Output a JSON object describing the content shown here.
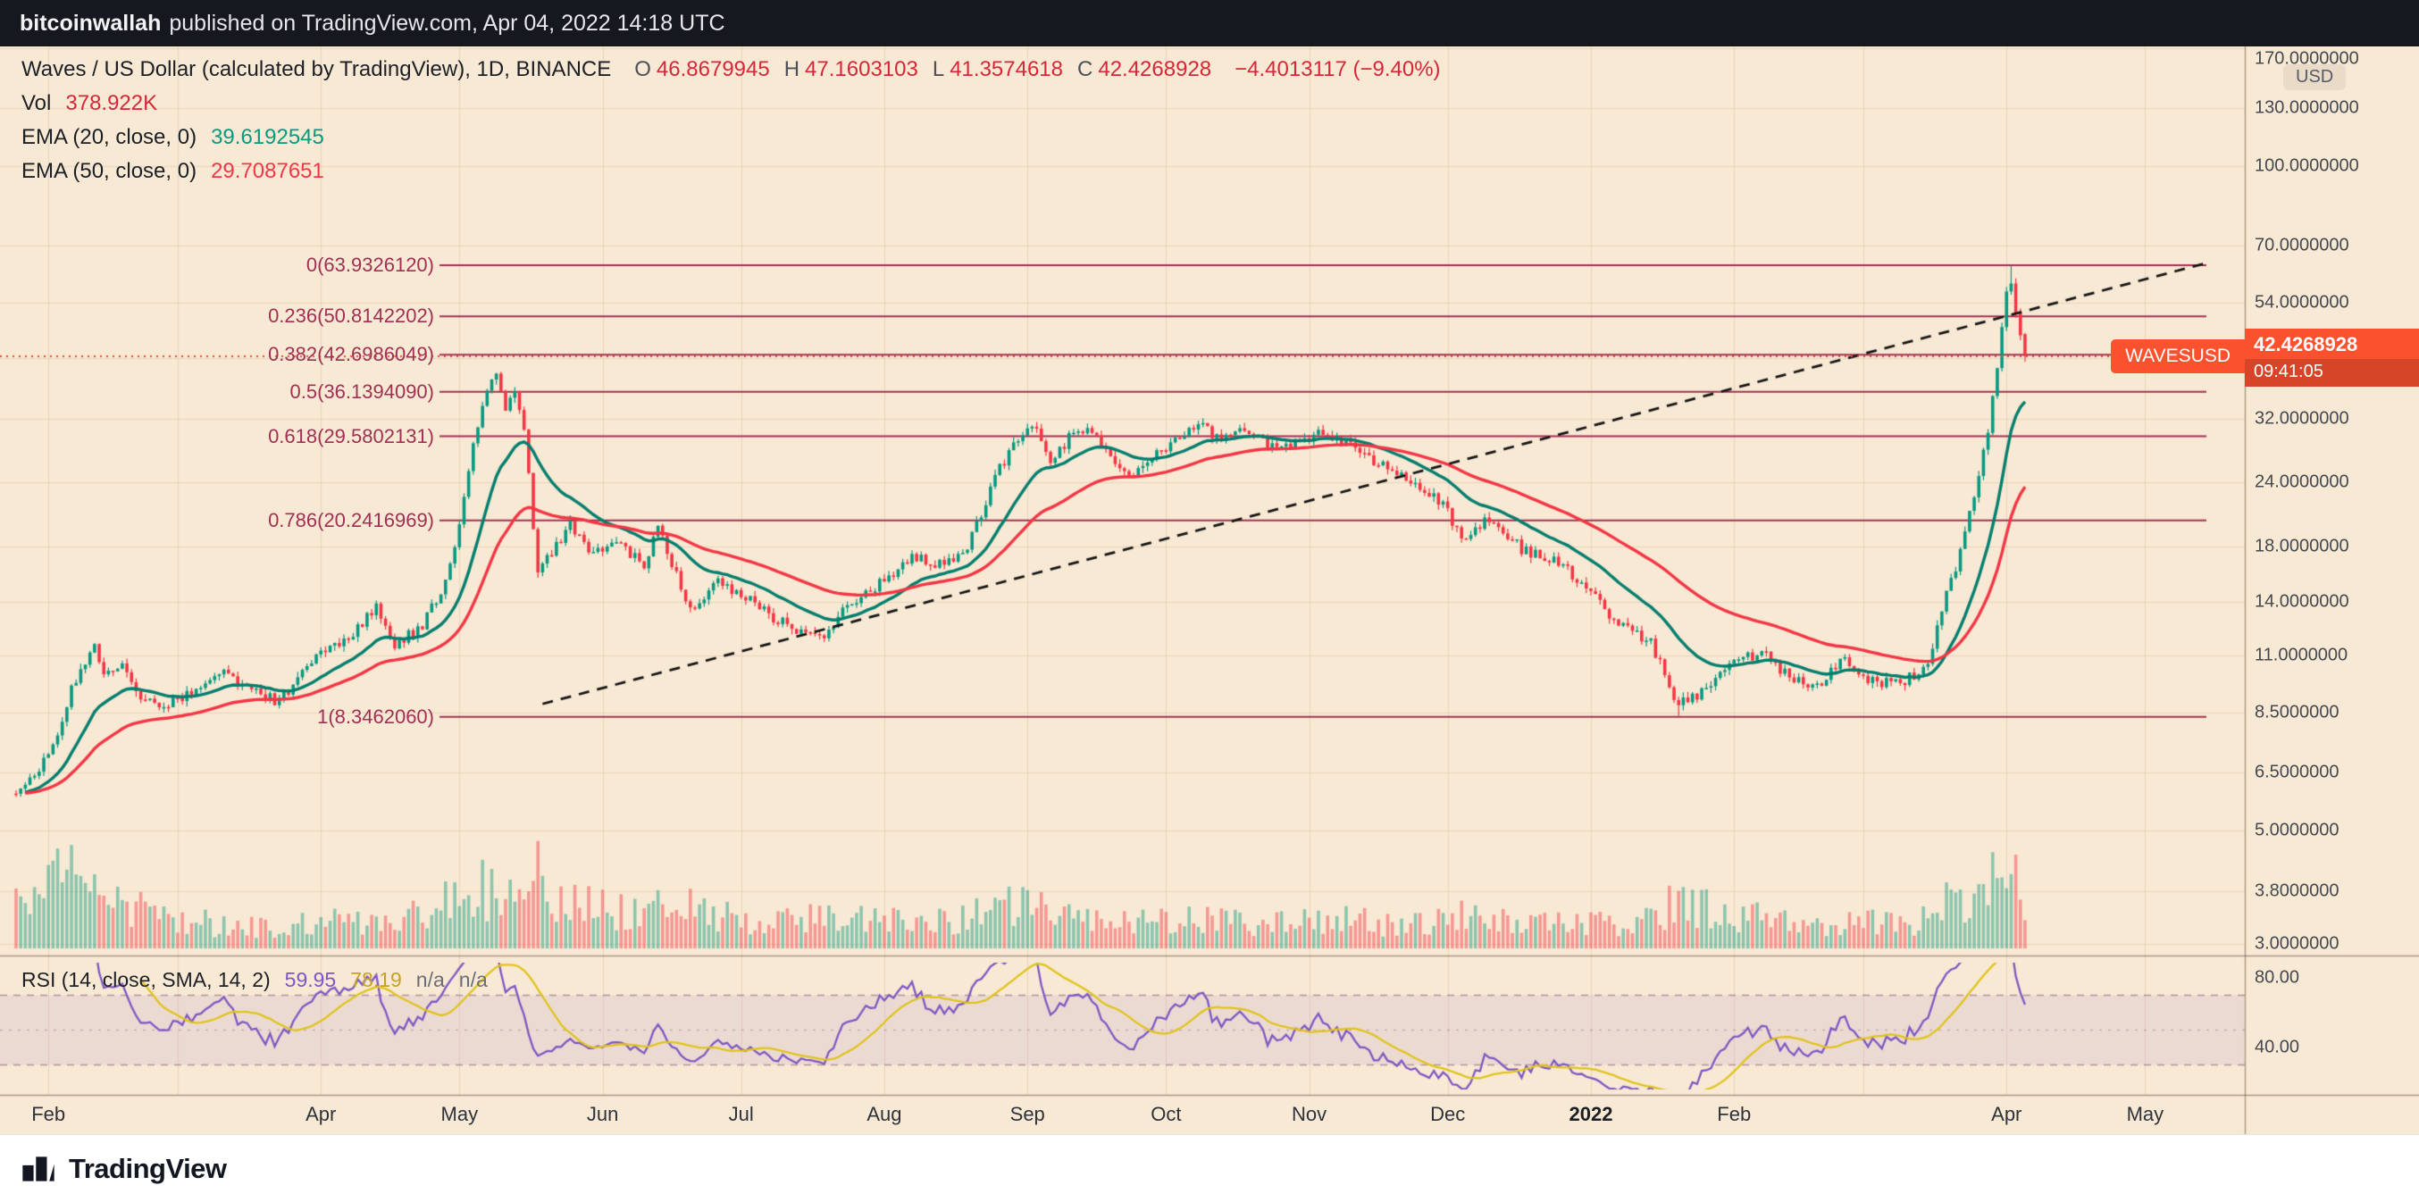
{
  "attribution": {
    "author": "bitcoinwallah",
    "text": "published on TradingView.com, Apr 04, 2022 14:18 UTC"
  },
  "legend": {
    "title": "Waves / US Dollar (calculated by TradingView), 1D, BINANCE",
    "ohlc": [
      {
        "k": "O",
        "v": "46.8679945"
      },
      {
        "k": "H",
        "v": "47.1603103"
      },
      {
        "k": "L",
        "v": "41.3574618"
      },
      {
        "k": "C",
        "v": "42.4268928"
      }
    ],
    "change": "−4.4013117 (−9.40%)",
    "vol_label": "Vol",
    "vol_value": "378.922K",
    "ema20_label": "EMA (20, close, 0)",
    "ema20_value": "39.6192545",
    "ema50_label": "EMA (50, close, 0)",
    "ema50_value": "29.7087651"
  },
  "rsi_legend": {
    "label": "RSI (14, close, SMA, 14, 2)",
    "rsi_value": "59.95",
    "ma_value": "78.19",
    "band1": "n/a",
    "band2": "n/a"
  },
  "price_axis": {
    "unit": "USD",
    "labels": [
      "170.0000000",
      "130.0000000",
      "100.0000000",
      "70.0000000",
      "54.0000000",
      "32.0000000",
      "24.0000000",
      "18.0000000",
      "14.0000000",
      "11.0000000",
      "8.5000000",
      "6.5000000",
      "5.0000000",
      "3.8000000",
      "3.0000000"
    ]
  },
  "rsi_axis": {
    "labels": [
      {
        "text": "80.00",
        "value": 80
      },
      {
        "text": "40.00",
        "value": 40
      }
    ]
  },
  "time_axis": [
    {
      "label": "Feb",
      "day": 7
    },
    {
      "label": "Apr",
      "day": 66
    },
    {
      "label": "May",
      "day": 96
    },
    {
      "label": "Jun",
      "day": 127
    },
    {
      "label": "Jul",
      "day": 157
    },
    {
      "label": "Aug",
      "day": 188
    },
    {
      "label": "Sep",
      "day": 219
    },
    {
      "label": "Oct",
      "day": 249
    },
    {
      "label": "Nov",
      "day": 280
    },
    {
      "label": "Dec",
      "day": 310
    },
    {
      "label": "2022",
      "day": 341,
      "bold": true
    },
    {
      "label": "Feb",
      "day": 372
    },
    {
      "label": "Apr",
      "day": 431
    },
    {
      "label": "May",
      "day": 461
    }
  ],
  "symbol_tag": {
    "text": "WAVESUSD",
    "price_text": "42.4268928",
    "countdown": "09:41:05",
    "price": 42.4268928
  },
  "footer": {
    "brand": "TradingView"
  },
  "chart_data": {
    "type": "candlestick",
    "symbol": "WAVESUSD",
    "exchange": "BINANCE",
    "interval": "1D",
    "price_scale": "log",
    "title": "Waves / US Dollar (calculated by TradingView)",
    "last_candle": {
      "open": 46.8679945,
      "high": 47.1603103,
      "low": 41.3574618,
      "close": 42.4268928,
      "change": -4.4013117,
      "change_pct": -9.4
    },
    "volume_display": "378.922K",
    "ema": [
      {
        "period": 20,
        "value": 39.6192545
      },
      {
        "period": 50,
        "value": 29.7087651
      }
    ],
    "rsi": {
      "period": 14,
      "value": 59.95,
      "ma_period": 14,
      "ma_value": 78.19,
      "upper": 70,
      "lower": 30
    },
    "fib_levels": [
      {
        "label": "0(63.9326120)",
        "price": 63.932612
      },
      {
        "label": "0.236(50.8142202)",
        "price": 50.8142202
      },
      {
        "label": "0.382(42.6986049)",
        "price": 42.6986049
      },
      {
        "label": "0.5(36.1394090)",
        "price": 36.139409
      },
      {
        "label": "0.618(29.5802131)",
        "price": 29.5802131
      },
      {
        "label": "0.786(20.2416969)",
        "price": 20.2416969
      },
      {
        "label": "1(8.3462060)",
        "price": 8.346206
      }
    ],
    "trendline": {
      "from": {
        "day": 114,
        "price": 8.85
      },
      "to": {
        "day": 474,
        "price": 64.5
      },
      "style": "dashed"
    },
    "extremes": {
      "high": {
        "day": 432,
        "price": 63.932612
      },
      "low": {
        "day": 360,
        "price": 8.346206
      }
    },
    "days": 436,
    "seed": 11,
    "price_log_range": [
      2.94,
      171.5
    ],
    "close_keypoints": [
      [
        0,
        5.9
      ],
      [
        3,
        6.3
      ],
      [
        8,
        7.2
      ],
      [
        12,
        9.6
      ],
      [
        17,
        11.4
      ],
      [
        19,
        9.9
      ],
      [
        23,
        10.6
      ],
      [
        26,
        9.3
      ],
      [
        31,
        8.8
      ],
      [
        38,
        9.3
      ],
      [
        44,
        10.3
      ],
      [
        51,
        9.4
      ],
      [
        57,
        8.9
      ],
      [
        63,
        10.6
      ],
      [
        66,
        11.1
      ],
      [
        72,
        12.0
      ],
      [
        78,
        13.6
      ],
      [
        82,
        11.6
      ],
      [
        88,
        12.6
      ],
      [
        93,
        15.5
      ],
      [
        96,
        20.0
      ],
      [
        99,
        28.0
      ],
      [
        102,
        36.5
      ],
      [
        104,
        38.5
      ],
      [
        106,
        34.0
      ],
      [
        108,
        36.0
      ],
      [
        110,
        31.0
      ],
      [
        113,
        16.0
      ],
      [
        116,
        17.5
      ],
      [
        120,
        19.8
      ],
      [
        124,
        17.4
      ],
      [
        130,
        18.6
      ],
      [
        136,
        16.4
      ],
      [
        139,
        19.6
      ],
      [
        146,
        13.6
      ],
      [
        152,
        15.4
      ],
      [
        158,
        14.4
      ],
      [
        164,
        13.0
      ],
      [
        174,
        11.8
      ],
      [
        181,
        14.0
      ],
      [
        188,
        15.4
      ],
      [
        194,
        17.4
      ],
      [
        201,
        16.4
      ],
      [
        206,
        17.8
      ],
      [
        211,
        23.5
      ],
      [
        216,
        28.8
      ],
      [
        220,
        31.4
      ],
      [
        224,
        25.8
      ],
      [
        228,
        29.4
      ],
      [
        232,
        30.8
      ],
      [
        236,
        27.4
      ],
      [
        241,
        24.8
      ],
      [
        246,
        26.8
      ],
      [
        251,
        29.4
      ],
      [
        256,
        31.2
      ],
      [
        261,
        28.8
      ],
      [
        266,
        30.4
      ],
      [
        273,
        27.8
      ],
      [
        279,
        29.4
      ],
      [
        284,
        30.0
      ],
      [
        289,
        28.4
      ],
      [
        296,
        25.8
      ],
      [
        303,
        23.8
      ],
      [
        309,
        21.8
      ],
      [
        313,
        18.8
      ],
      [
        319,
        20.4
      ],
      [
        326,
        17.8
      ],
      [
        333,
        16.8
      ],
      [
        340,
        15.2
      ],
      [
        346,
        12.8
      ],
      [
        354,
        11.6
      ],
      [
        360,
        8.8
      ],
      [
        366,
        9.4
      ],
      [
        371,
        10.6
      ],
      [
        378,
        11.2
      ],
      [
        384,
        10.0
      ],
      [
        390,
        9.6
      ],
      [
        396,
        10.8
      ],
      [
        402,
        9.8
      ],
      [
        408,
        9.7
      ],
      [
        414,
        10.5
      ],
      [
        418,
        14.5
      ],
      [
        421,
        17.5
      ],
      [
        424,
        23.0
      ],
      [
        427,
        30.5
      ],
      [
        429,
        41.0
      ],
      [
        430,
        48.5
      ],
      [
        431,
        56.0
      ],
      [
        432,
        59.5
      ],
      [
        433,
        52.5
      ],
      [
        434,
        46.8
      ],
      [
        435,
        42.4268928
      ]
    ],
    "volume_keypoints": [
      [
        0,
        0.5
      ],
      [
        8,
        0.8
      ],
      [
        12,
        0.95
      ],
      [
        17,
        0.75
      ],
      [
        25,
        0.45
      ],
      [
        40,
        0.3
      ],
      [
        55,
        0.22
      ],
      [
        65,
        0.3
      ],
      [
        78,
        0.35
      ],
      [
        90,
        0.45
      ],
      [
        99,
        0.7
      ],
      [
        104,
        0.65
      ],
      [
        110,
        0.9
      ],
      [
        113,
        1.0
      ],
      [
        118,
        0.6
      ],
      [
        124,
        0.5
      ],
      [
        130,
        0.45
      ],
      [
        139,
        0.55
      ],
      [
        146,
        0.5
      ],
      [
        160,
        0.32
      ],
      [
        174,
        0.35
      ],
      [
        188,
        0.3
      ],
      [
        206,
        0.35
      ],
      [
        216,
        0.5
      ],
      [
        220,
        0.45
      ],
      [
        228,
        0.35
      ],
      [
        246,
        0.3
      ],
      [
        256,
        0.35
      ],
      [
        273,
        0.28
      ],
      [
        289,
        0.32
      ],
      [
        303,
        0.28
      ],
      [
        313,
        0.38
      ],
      [
        326,
        0.28
      ],
      [
        341,
        0.28
      ],
      [
        354,
        0.32
      ],
      [
        360,
        0.55
      ],
      [
        371,
        0.4
      ],
      [
        384,
        0.28
      ],
      [
        396,
        0.3
      ],
      [
        408,
        0.28
      ],
      [
        414,
        0.35
      ],
      [
        418,
        0.5
      ],
      [
        424,
        0.6
      ],
      [
        428,
        0.75
      ],
      [
        430,
        0.85
      ],
      [
        432,
        0.9
      ],
      [
        434,
        0.65
      ],
      [
        435,
        0.4
      ]
    ],
    "month_grid_days": [
      7,
      35,
      66,
      96,
      127,
      157,
      188,
      219,
      249,
      280,
      310,
      341,
      372,
      400,
      431,
      461
    ],
    "h_grid_prices": [
      170,
      130,
      100,
      70,
      54,
      42,
      32,
      24,
      18,
      14,
      11,
      8.5,
      6.5,
      5,
      3.8,
      3
    ],
    "colors": {
      "up": "#089981",
      "down": "#f23645",
      "vol_up": "rgba(8,153,129,0.45)",
      "vol_down": "rgba(242,54,69,0.45)",
      "ema20": "#047e6e",
      "ema50": "#f23645",
      "grid": "rgba(140,80,40,0.13)",
      "fib": "#a13054",
      "trend": "#151515",
      "price_line": "#e04a2f",
      "badge": "#fa512e",
      "rsi": "#7e57c2",
      "rsi_ma": "#dfc31d",
      "band": "rgba(126,87,194,0.10)",
      "band_line": "rgba(136,98,118,0.60)",
      "band_mid": "rgba(136,98,118,0.38)",
      "separator": "rgba(75,55,35,0.45)"
    }
  }
}
